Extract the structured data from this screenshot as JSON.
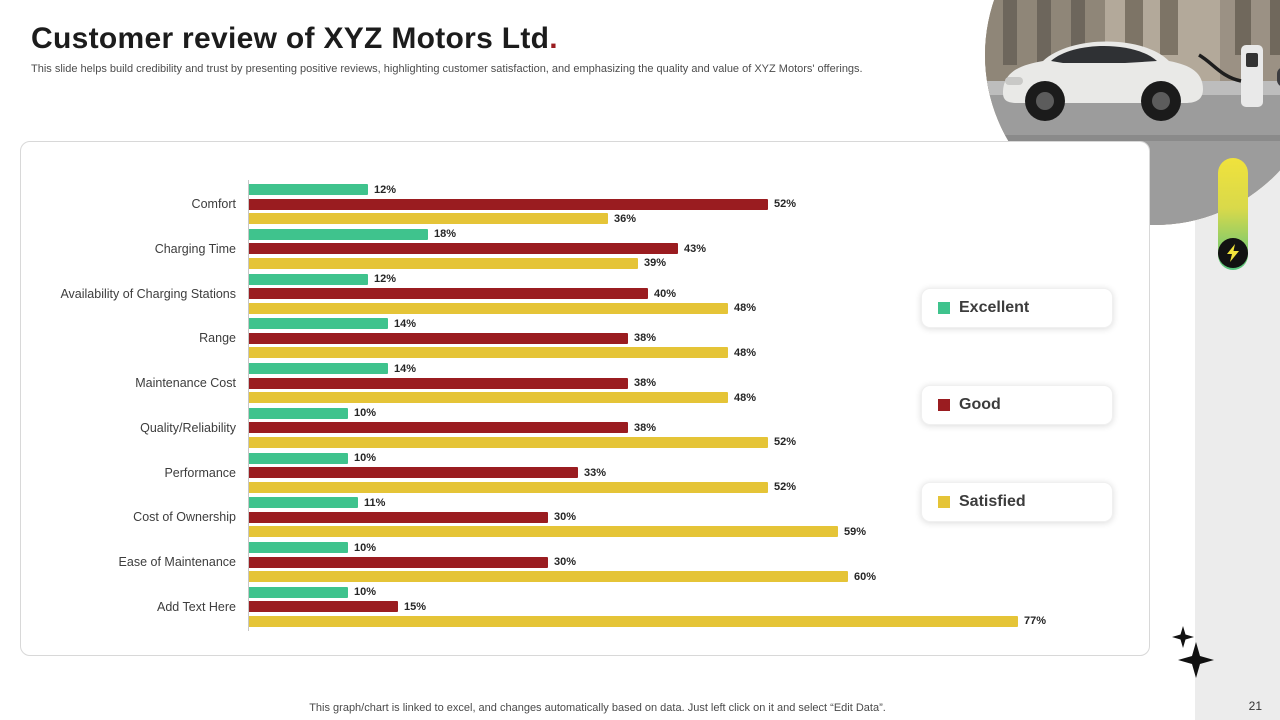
{
  "slide": {
    "title": "Customer review of XYZ Motors Ltd",
    "title_period": ".",
    "subtitle": "This slide helps build credibility and trust by presenting positive reviews, highlighting customer satisfaction, and emphasizing the quality and value of XYZ Motors' offerings.",
    "footer_note": "This graph/chart is linked to excel, and changes automatically based on data. Just left click on it and select “Edit Data”.",
    "page_number": "21"
  },
  "chart_data": {
    "type": "bar",
    "orientation": "horizontal",
    "title": "",
    "xlabel": "",
    "ylabel": "",
    "xlim": [
      0,
      80
    ],
    "grid": false,
    "legend_position": "right",
    "value_suffix": "%",
    "categories": [
      "Comfort",
      "Charging Time",
      "Availability of Charging Stations",
      "Range",
      "Maintenance Cost",
      "Quality/Reliability",
      "Performance",
      "Cost of Ownership",
      "Ease of Maintenance",
      "Add Text Here"
    ],
    "series": [
      {
        "name": "Excellent",
        "color": "#3fc38d",
        "values": [
          12,
          18,
          12,
          14,
          14,
          10,
          10,
          11,
          10,
          10
        ]
      },
      {
        "name": "Good",
        "color": "#9a1c20",
        "values": [
          52,
          43,
          40,
          38,
          38,
          38,
          33,
          30,
          30,
          15
        ]
      },
      {
        "name": "Satisfied",
        "color": "#e5c437",
        "values": [
          36,
          39,
          48,
          48,
          48,
          52,
          52,
          59,
          60,
          77
        ]
      }
    ]
  },
  "legend": {
    "items": [
      {
        "label": "Excellent",
        "color": "#3fc38d"
      },
      {
        "label": "Good",
        "color": "#9a1c20"
      },
      {
        "label": "Satisfied",
        "color": "#e5c437"
      }
    ]
  },
  "icons": {
    "bolt_icon": "lightning bolt",
    "sparkle_icon": "four-point star",
    "hero_image": "electric car charging on a city street"
  },
  "colors": {
    "accent_red": "#9a1c20",
    "accent_green": "#3fc38d",
    "accent_yellow": "#e5c437",
    "strip_gray": "#ececec"
  }
}
